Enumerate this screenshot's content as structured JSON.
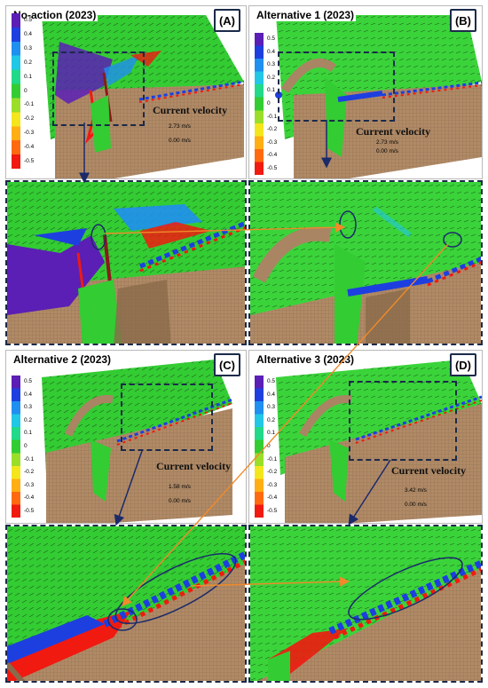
{
  "panels": [
    {
      "title": "No-action (2023)",
      "letter": "(A)",
      "vmax": "2.73 m/s",
      "vmin": "0.00 m/s"
    },
    {
      "title": "Alternative 1 (2023)",
      "letter": "(B)",
      "vmax": "2.73 m/s",
      "vmin": "0.00 m/s"
    },
    {
      "title": "Alternative 2 (2023)",
      "letter": "(C)",
      "vmax": "1.58 m/s",
      "vmin": "0.00 m/s"
    },
    {
      "title": "Alternative 3 (2023)",
      "letter": "(D)",
      "vmax": "3.42 m/s",
      "vmin": "0.00 m/s"
    }
  ],
  "legend": {
    "ticks": [
      "0.5",
      "0.4",
      "0.3",
      "0.2",
      "0.1",
      "0",
      "-0.1",
      "-0.2",
      "-0.3",
      "-0.4",
      "-0.5"
    ],
    "colors": [
      "#5b1fb5",
      "#1d3fe0",
      "#1f8ff0",
      "#22c7e6",
      "#22d98a",
      "#33cc33",
      "#9ade2a",
      "#f4e61c",
      "#ffae14",
      "#ff6a10",
      "#f01a10"
    ]
  },
  "current_velocity_label": "Current velocity",
  "colors": {
    "sea": "#33cc33",
    "land": "#a98563",
    "frame": "#1b2a4a",
    "arrow_blue": "#1b2a6a",
    "arrow_orange": "#f08a2a"
  }
}
